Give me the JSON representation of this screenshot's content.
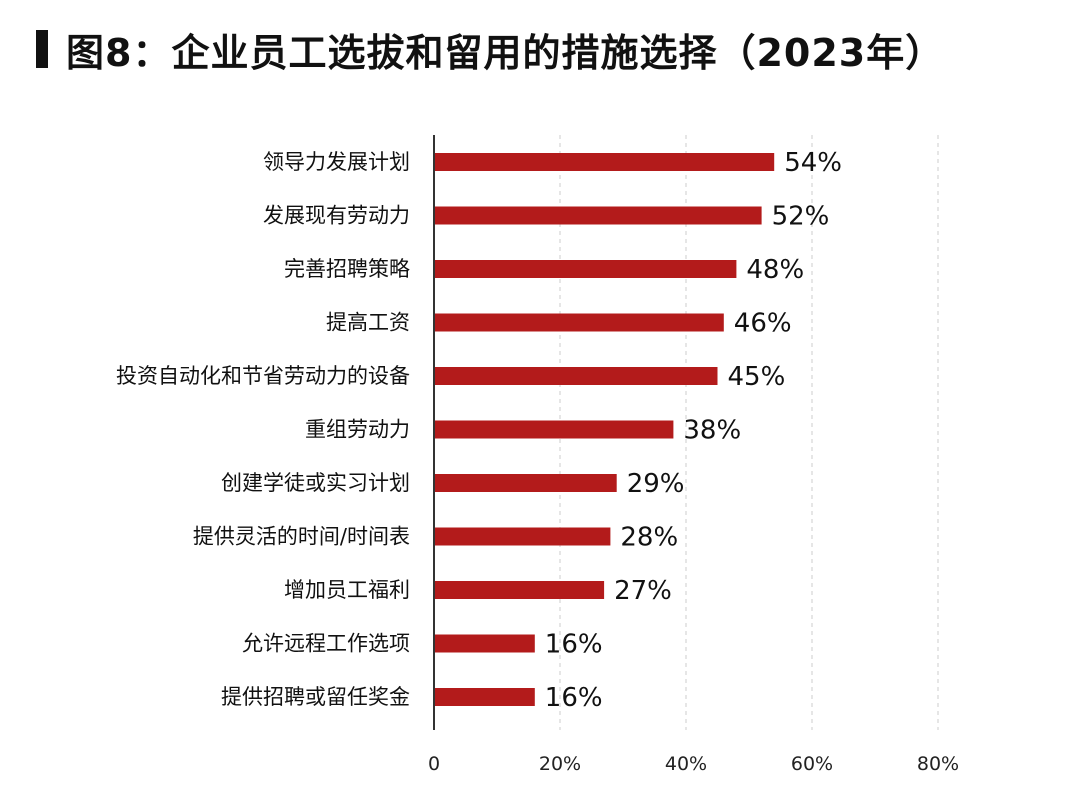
{
  "title": "图8：企业员工选拔和留用的措施选择（2023年）",
  "colors": {
    "bar": "#b31b1b",
    "axis": "#333333",
    "grid": "#cccccc"
  },
  "chart_data": {
    "type": "bar",
    "orientation": "horizontal",
    "title": "图8：企业员工选拔和留用的措施选择（2023年）",
    "xlabel": "",
    "ylabel": "",
    "categories": [
      "领导力发展计划",
      "发展现有劳动力",
      "完善招聘策略",
      "提高工资",
      "投资自动化和节省劳动力的设备",
      "重组劳动力",
      "创建学徒或实习计划",
      "提供灵活的时间/时间表",
      "增加员工福利",
      "允许远程工作选项",
      "提供招聘或留任奖金"
    ],
    "values": [
      54,
      52,
      48,
      46,
      45,
      38,
      29,
      28,
      27,
      16,
      16
    ],
    "value_labels": [
      "54%",
      "52%",
      "48%",
      "46%",
      "45%",
      "38%",
      "29%",
      "28%",
      "27%",
      "16%",
      "16%"
    ],
    "xlim": [
      0,
      80
    ],
    "x_ticks": [
      0,
      20,
      40,
      60,
      80
    ],
    "x_tick_labels": [
      "0",
      "20%",
      "40%",
      "60%",
      "80%"
    ],
    "grid": "vertical dashed"
  }
}
